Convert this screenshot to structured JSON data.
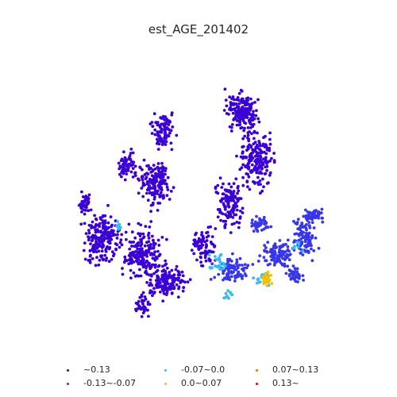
{
  "title": "est_AGE_201402",
  "legend": [
    {
      "label": "~0.13",
      "color": "#3a00d4"
    },
    {
      "label": "-0.13~-0.07",
      "color": "#3737e8"
    },
    {
      "label": "-0.07~0.0",
      "color": "#36bcf0"
    },
    {
      "label": "0.0~0.07",
      "color": "#f2c200"
    },
    {
      "label": "0.07~0.13",
      "color": "#ff6a00"
    },
    {
      "label": "0.13~",
      "color": "#d60000"
    }
  ]
}
